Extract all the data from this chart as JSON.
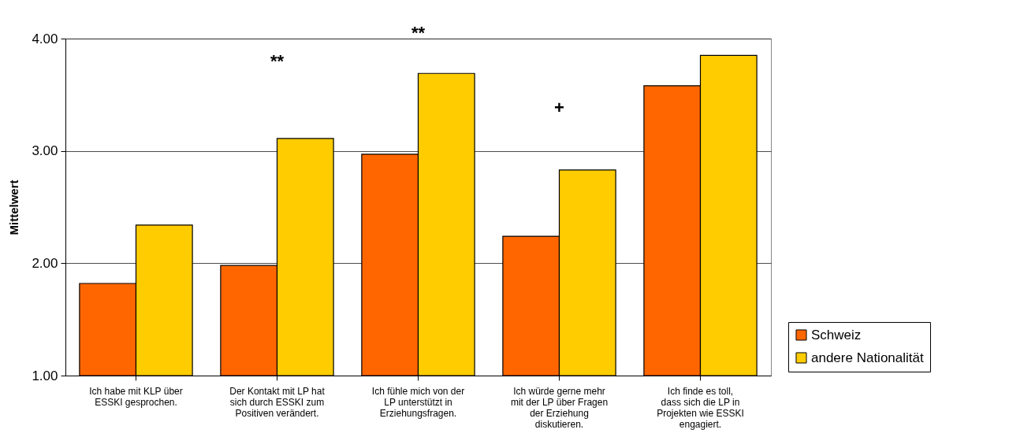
{
  "chart_data": {
    "type": "bar",
    "ylabel": "Mittelwert",
    "categories": [
      "Ich habe mit KLP über ESSKI gesprochen.",
      "Der Kontakt mit LP hat sich durch ESSKI zum Positiven verändert.",
      "Ich fühle mich von der LP unterstützt in Erziehungsfragen.",
      "Ich würde gerne mehr mit der LP über Fragen der Erziehung diskutieren.",
      "Ich finde es toll, dass sich die LP in Projekten wie ESSKI engagiert."
    ],
    "series": [
      {
        "name": "Schweiz",
        "color": "#ff6600",
        "values": [
          1.82,
          1.98,
          2.97,
          2.24,
          3.58
        ]
      },
      {
        "name": "andere Nationalität",
        "color": "#ffcc00",
        "values": [
          2.34,
          3.11,
          3.69,
          2.83,
          3.85
        ]
      }
    ],
    "ylim": [
      1,
      4
    ],
    "yticks": [
      {
        "value": 1,
        "label": "1.00"
      },
      {
        "value": 2,
        "label": "2.00"
      },
      {
        "value": 3,
        "label": "3.00"
      },
      {
        "value": 4,
        "label": "4.00"
      }
    ],
    "grid": "y",
    "legend": "bottom right",
    "annotations": [
      "**",
      "**",
      "+"
    ]
  }
}
